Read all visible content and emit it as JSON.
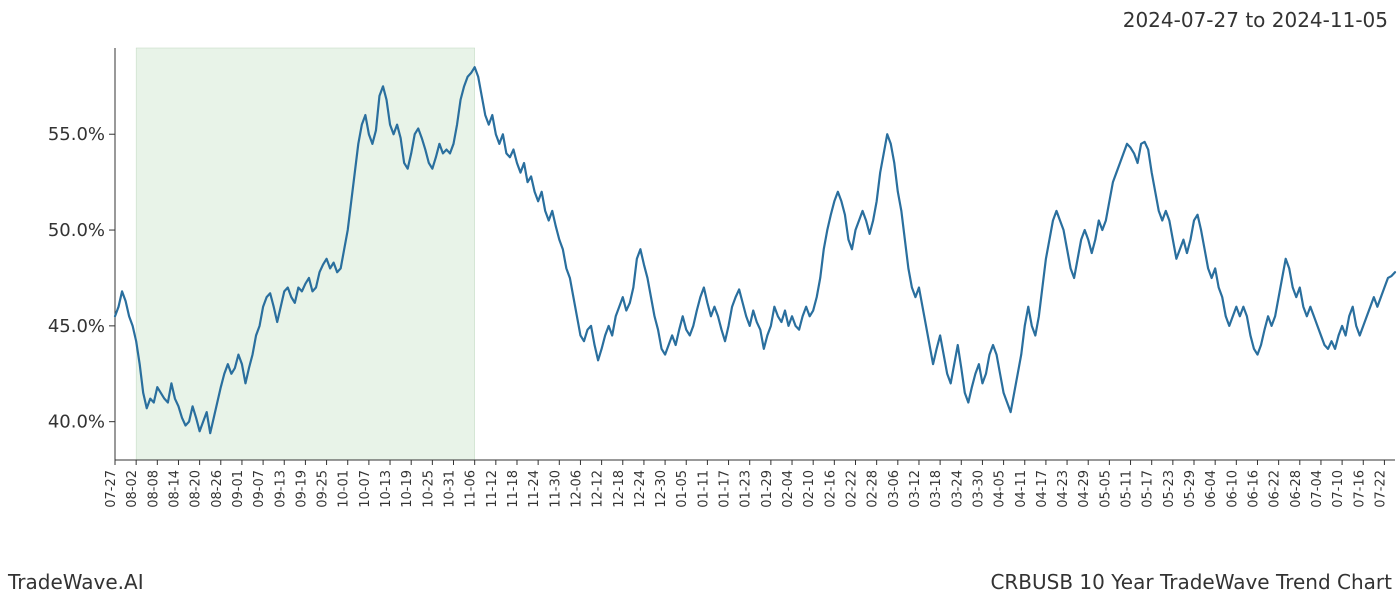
{
  "header": {
    "date_range": "2024-07-27 to 2024-11-05"
  },
  "footer": {
    "brand": "TradeWave.AI",
    "chart_title": "CRBUSB 10 Year TradeWave Trend Chart"
  },
  "chart": {
    "type": "line",
    "background_color": "#ffffff",
    "line_color": "#2a6f9e",
    "line_width": 2.2,
    "highlight": {
      "enabled": true,
      "x_start": "08-02",
      "x_end": "11-06",
      "fill_color": "#d6e9d6",
      "fill_opacity": 0.55,
      "border_color": "#c0d8c0"
    },
    "axis_color": "#333333",
    "tick_fontsize_y": 18,
    "tick_fontsize_x": 13,
    "ylim": [
      38.0,
      59.5
    ],
    "yticks": [
      40.0,
      45.0,
      50.0,
      55.0
    ],
    "ytick_format": "percent_1dp",
    "xticks": [
      "07-27",
      "08-02",
      "08-08",
      "08-14",
      "08-20",
      "08-26",
      "09-01",
      "09-07",
      "09-13",
      "09-19",
      "09-25",
      "10-01",
      "10-07",
      "10-13",
      "10-19",
      "10-25",
      "10-31",
      "11-06",
      "11-12",
      "11-18",
      "11-24",
      "11-30",
      "12-06",
      "12-12",
      "12-18",
      "12-24",
      "12-30",
      "01-05",
      "01-11",
      "01-17",
      "01-23",
      "01-29",
      "02-04",
      "02-10",
      "02-16",
      "02-22",
      "02-28",
      "03-06",
      "03-12",
      "03-18",
      "03-24",
      "03-30",
      "04-05",
      "04-11",
      "04-17",
      "04-23",
      "04-29",
      "05-05",
      "05-11",
      "05-17",
      "05-23",
      "05-29",
      "06-04",
      "06-10",
      "06-16",
      "06-22",
      "06-28",
      "07-04",
      "07-10",
      "07-16",
      "07-22"
    ],
    "xtick_rotation": 90,
    "series": {
      "name": "CRBUSB",
      "x": [
        "07-27",
        "07-28",
        "07-29",
        "07-30",
        "07-31",
        "08-01",
        "08-02",
        "08-03",
        "08-04",
        "08-05",
        "08-06",
        "08-07",
        "08-08",
        "08-09",
        "08-10",
        "08-11",
        "08-12",
        "08-13",
        "08-14",
        "08-15",
        "08-16",
        "08-17",
        "08-18",
        "08-19",
        "08-20",
        "08-21",
        "08-22",
        "08-23",
        "08-24",
        "08-25",
        "08-26",
        "08-27",
        "08-28",
        "08-29",
        "08-30",
        "08-31",
        "09-01",
        "09-02",
        "09-03",
        "09-04",
        "09-05",
        "09-06",
        "09-07",
        "09-08",
        "09-09",
        "09-10",
        "09-11",
        "09-12",
        "09-13",
        "09-14",
        "09-15",
        "09-16",
        "09-17",
        "09-18",
        "09-19",
        "09-20",
        "09-21",
        "09-22",
        "09-23",
        "09-24",
        "09-25",
        "09-26",
        "09-27",
        "09-28",
        "09-29",
        "09-30",
        "10-01",
        "10-02",
        "10-03",
        "10-04",
        "10-05",
        "10-06",
        "10-07",
        "10-08",
        "10-09",
        "10-10",
        "10-11",
        "10-12",
        "10-13",
        "10-14",
        "10-15",
        "10-16",
        "10-17",
        "10-18",
        "10-19",
        "10-20",
        "10-21",
        "10-22",
        "10-23",
        "10-24",
        "10-25",
        "10-26",
        "10-27",
        "10-28",
        "10-29",
        "10-30",
        "10-31",
        "11-01",
        "11-02",
        "11-03",
        "11-04",
        "11-05",
        "11-06",
        "11-07",
        "11-08",
        "11-09",
        "11-10",
        "11-11",
        "11-12",
        "11-13",
        "11-14",
        "11-15",
        "11-16",
        "11-17",
        "11-18",
        "11-19",
        "11-20",
        "11-21",
        "11-22",
        "11-23",
        "11-24",
        "11-25",
        "11-26",
        "11-27",
        "11-28",
        "11-29",
        "11-30",
        "12-01",
        "12-02",
        "12-03",
        "12-04",
        "12-05",
        "12-06",
        "12-07",
        "12-08",
        "12-09",
        "12-10",
        "12-11",
        "12-12",
        "12-13",
        "12-14",
        "12-15",
        "12-16",
        "12-17",
        "12-18",
        "12-19",
        "12-20",
        "12-21",
        "12-22",
        "12-23",
        "12-24",
        "12-25",
        "12-26",
        "12-27",
        "12-28",
        "12-29",
        "12-30",
        "12-31",
        "01-01",
        "01-02",
        "01-03",
        "01-04",
        "01-05",
        "01-06",
        "01-07",
        "01-08",
        "01-09",
        "01-10",
        "01-11",
        "01-12",
        "01-13",
        "01-14",
        "01-15",
        "01-16",
        "01-17",
        "01-18",
        "01-19",
        "01-20",
        "01-21",
        "01-22",
        "01-23",
        "01-24",
        "01-25",
        "01-26",
        "01-27",
        "01-28",
        "01-29",
        "01-30",
        "01-31",
        "02-01",
        "02-02",
        "02-03",
        "02-04",
        "02-05",
        "02-06",
        "02-07",
        "02-08",
        "02-09",
        "02-10",
        "02-11",
        "02-12",
        "02-13",
        "02-14",
        "02-15",
        "02-16",
        "02-17",
        "02-18",
        "02-19",
        "02-20",
        "02-21",
        "02-22",
        "02-23",
        "02-24",
        "02-25",
        "02-26",
        "02-27",
        "02-28",
        "03-01",
        "03-02",
        "03-03",
        "03-04",
        "03-05",
        "03-06",
        "03-07",
        "03-08",
        "03-09",
        "03-10",
        "03-11",
        "03-12",
        "03-13",
        "03-14",
        "03-15",
        "03-16",
        "03-17",
        "03-18",
        "03-19",
        "03-20",
        "03-21",
        "03-22",
        "03-23",
        "03-24",
        "03-25",
        "03-26",
        "03-27",
        "03-28",
        "03-29",
        "03-30",
        "03-31",
        "04-01",
        "04-02",
        "04-03",
        "04-04",
        "04-05",
        "04-06",
        "04-07",
        "04-08",
        "04-09",
        "04-10",
        "04-11",
        "04-12",
        "04-13",
        "04-14",
        "04-15",
        "04-16",
        "04-17",
        "04-18",
        "04-19",
        "04-20",
        "04-21",
        "04-22",
        "04-23",
        "04-24",
        "04-25",
        "04-26",
        "04-27",
        "04-28",
        "04-29",
        "04-30",
        "05-01",
        "05-02",
        "05-03",
        "05-04",
        "05-05",
        "05-06",
        "05-07",
        "05-08",
        "05-09",
        "05-10",
        "05-11",
        "05-12",
        "05-13",
        "05-14",
        "05-15",
        "05-16",
        "05-17",
        "05-18",
        "05-19",
        "05-20",
        "05-21",
        "05-22",
        "05-23",
        "05-24",
        "05-25",
        "05-26",
        "05-27",
        "05-28",
        "05-29",
        "05-30",
        "05-31",
        "06-01",
        "06-02",
        "06-03",
        "06-04",
        "06-05",
        "06-06",
        "06-07",
        "06-08",
        "06-09",
        "06-10",
        "06-11",
        "06-12",
        "06-13",
        "06-14",
        "06-15",
        "06-16",
        "06-17",
        "06-18",
        "06-19",
        "06-20",
        "06-21",
        "06-22",
        "06-23",
        "06-24",
        "06-25",
        "06-26",
        "06-27",
        "06-28",
        "06-29",
        "06-30",
        "07-01",
        "07-02",
        "07-03",
        "07-04",
        "07-05",
        "07-06",
        "07-07",
        "07-08",
        "07-09",
        "07-10",
        "07-11",
        "07-12",
        "07-13",
        "07-14",
        "07-15",
        "07-16",
        "07-17",
        "07-18",
        "07-19",
        "07-20",
        "07-21",
        "07-22",
        "07-23",
        "07-24",
        "07-25"
      ],
      "y": [
        45.5,
        46.0,
        46.8,
        46.3,
        45.5,
        45.0,
        44.2,
        43.0,
        41.5,
        40.7,
        41.2,
        41.0,
        41.8,
        41.5,
        41.2,
        41.0,
        42.0,
        41.2,
        40.8,
        40.2,
        39.8,
        40.0,
        40.8,
        40.2,
        39.5,
        40.0,
        40.5,
        39.4,
        40.2,
        41.0,
        41.8,
        42.5,
        43.0,
        42.5,
        42.8,
        43.5,
        43.0,
        42.0,
        42.8,
        43.5,
        44.5,
        45.0,
        46.0,
        46.5,
        46.7,
        46.0,
        45.2,
        46.0,
        46.8,
        47.0,
        46.5,
        46.2,
        47.0,
        46.8,
        47.2,
        47.5,
        46.8,
        47.0,
        47.8,
        48.2,
        48.5,
        48.0,
        48.3,
        47.8,
        48.0,
        49.0,
        50.0,
        51.5,
        53.0,
        54.5,
        55.5,
        56.0,
        55.0,
        54.5,
        55.2,
        57.0,
        57.5,
        56.8,
        55.5,
        55.0,
        55.5,
        54.8,
        53.5,
        53.2,
        54.0,
        55.0,
        55.3,
        54.8,
        54.2,
        53.5,
        53.2,
        53.8,
        54.5,
        54.0,
        54.2,
        54.0,
        54.5,
        55.5,
        56.8,
        57.5,
        58.0,
        58.2,
        58.5,
        58.0,
        57.0,
        56.0,
        55.5,
        56.0,
        55.0,
        54.5,
        55.0,
        54.0,
        53.8,
        54.2,
        53.5,
        53.0,
        53.5,
        52.5,
        52.8,
        52.0,
        51.5,
        52.0,
        51.0,
        50.5,
        51.0,
        50.2,
        49.5,
        49.0,
        48.0,
        47.5,
        46.5,
        45.5,
        44.5,
        44.2,
        44.8,
        45.0,
        44.0,
        43.2,
        43.8,
        44.5,
        45.0,
        44.5,
        45.5,
        46.0,
        46.5,
        45.8,
        46.2,
        47.0,
        48.5,
        49.0,
        48.2,
        47.5,
        46.5,
        45.5,
        44.8,
        43.8,
        43.5,
        44.0,
        44.5,
        44.0,
        44.8,
        45.5,
        44.8,
        44.5,
        45.0,
        45.8,
        46.5,
        47.0,
        46.2,
        45.5,
        46.0,
        45.5,
        44.8,
        44.2,
        45.0,
        46.0,
        46.5,
        46.9,
        46.2,
        45.5,
        45.0,
        45.8,
        45.2,
        44.8,
        43.8,
        44.5,
        45.0,
        46.0,
        45.5,
        45.2,
        45.8,
        45.0,
        45.5,
        45.0,
        44.8,
        45.5,
        46.0,
        45.5,
        45.8,
        46.5,
        47.5,
        49.0,
        50.0,
        50.8,
        51.5,
        52.0,
        51.5,
        50.8,
        49.5,
        49.0,
        50.0,
        50.5,
        51.0,
        50.5,
        49.8,
        50.5,
        51.5,
        53.0,
        54.0,
        55.0,
        54.5,
        53.5,
        52.0,
        51.0,
        49.5,
        48.0,
        47.0,
        46.5,
        47.0,
        46.0,
        45.0,
        44.0,
        43.0,
        43.8,
        44.5,
        43.5,
        42.5,
        42.0,
        43.0,
        44.0,
        42.8,
        41.5,
        41.0,
        41.8,
        42.5,
        43.0,
        42.0,
        42.5,
        43.5,
        44.0,
        43.5,
        42.5,
        41.5,
        41.0,
        40.5,
        41.5,
        42.5,
        43.5,
        45.0,
        46.0,
        45.0,
        44.5,
        45.5,
        47.0,
        48.5,
        49.5,
        50.5,
        51.0,
        50.5,
        50.0,
        49.0,
        48.0,
        47.5,
        48.5,
        49.5,
        50.0,
        49.5,
        48.8,
        49.5,
        50.5,
        50.0,
        50.5,
        51.5,
        52.5,
        53.0,
        53.5,
        54.0,
        54.5,
        54.3,
        54.0,
        53.5,
        54.5,
        54.6,
        54.2,
        53.0,
        52.0,
        51.0,
        50.5,
        51.0,
        50.5,
        49.5,
        48.5,
        49.0,
        49.5,
        48.8,
        49.5,
        50.5,
        50.8,
        50.0,
        49.0,
        48.0,
        47.5,
        48.0,
        47.0,
        46.5,
        45.5,
        45.0,
        45.5,
        46.0,
        45.5,
        46.0,
        45.5,
        44.5,
        43.8,
        43.5,
        44.0,
        44.8,
        45.5,
        45.0,
        45.5,
        46.5,
        47.5,
        48.5,
        48.0,
        47.0,
        46.5,
        47.0,
        46.0,
        45.5,
        46.0,
        45.5,
        45.0,
        44.5,
        44.0,
        43.8,
        44.2,
        43.8,
        44.5,
        45.0,
        44.5,
        45.5,
        46.0,
        45.0,
        44.5,
        45.0,
        45.5,
        46.0,
        46.5,
        46.0,
        46.5,
        47.0,
        47.5,
        47.6,
        47.8
      ]
    }
  }
}
